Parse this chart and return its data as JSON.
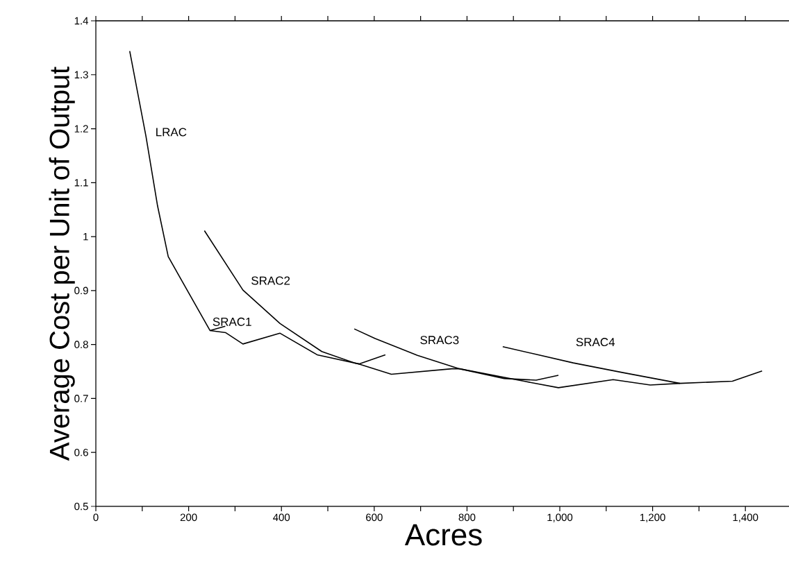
{
  "chart_data": {
    "type": "line",
    "xlabel": "Acres",
    "ylabel": "Average Cost per Unit of Output",
    "xlim": [
      0,
      1500
    ],
    "ylim": [
      0.5,
      1.4
    ],
    "xticks": [
      0,
      {
        "value": 100,
        "label": null
      },
      200,
      {
        "value": 300,
        "label": null
      },
      400,
      {
        "value": 500,
        "label": null
      },
      600,
      {
        "value": 700,
        "label": null
      },
      800,
      {
        "value": 900,
        "label": null
      },
      {
        "value": 1000,
        "label": "1,000"
      },
      {
        "value": 1100,
        "label": null
      },
      {
        "value": 1200,
        "label": "1,200"
      },
      {
        "value": 1300,
        "label": null
      },
      {
        "value": 1400,
        "label": "1,400"
      }
    ],
    "yticks": [
      0.5,
      0.6,
      0.7,
      0.8,
      0.9,
      1,
      1.1,
      1.2,
      1.3,
      1.4
    ],
    "grid": false,
    "legend": false,
    "marker": "none",
    "line_style": "solid",
    "series": [
      {
        "name": "LRAC",
        "color": "#000000",
        "x": [
          73,
          108,
          133,
          156,
          246,
          280,
          317,
          397,
          477,
          567,
          637,
          767,
          784,
          923,
          997,
          1115,
          1195,
          1259,
          1372,
          1436
        ],
        "values": [
          1.344,
          1.186,
          1.057,
          0.963,
          0.826,
          0.822,
          0.801,
          0.821,
          0.781,
          0.764,
          0.745,
          0.755,
          0.755,
          0.732,
          0.72,
          0.735,
          0.725,
          0.728,
          0.732,
          0.751
        ]
      },
      {
        "name": "SRAC1",
        "color": "#000000",
        "x": [
          246,
          279
        ],
        "values": [
          0.826,
          0.834
        ]
      },
      {
        "name": "SRAC2",
        "color": "#000000",
        "x": [
          234,
          317,
          397,
          487,
          557,
          567,
          624
        ],
        "values": [
          1.011,
          0.901,
          0.839,
          0.787,
          0.766,
          0.764,
          0.781
        ]
      },
      {
        "name": "SRAC3",
        "color": "#000000",
        "x": [
          557,
          602,
          693,
          784,
          880,
          949,
          997
        ],
        "values": [
          0.829,
          0.811,
          0.78,
          0.755,
          0.737,
          0.734,
          0.743
        ]
      },
      {
        "name": "SRAC4",
        "color": "#000000",
        "x": [
          877,
          1029,
          1136,
          1259
        ],
        "values": [
          0.796,
          0.766,
          0.748,
          0.728
        ]
      }
    ]
  }
}
